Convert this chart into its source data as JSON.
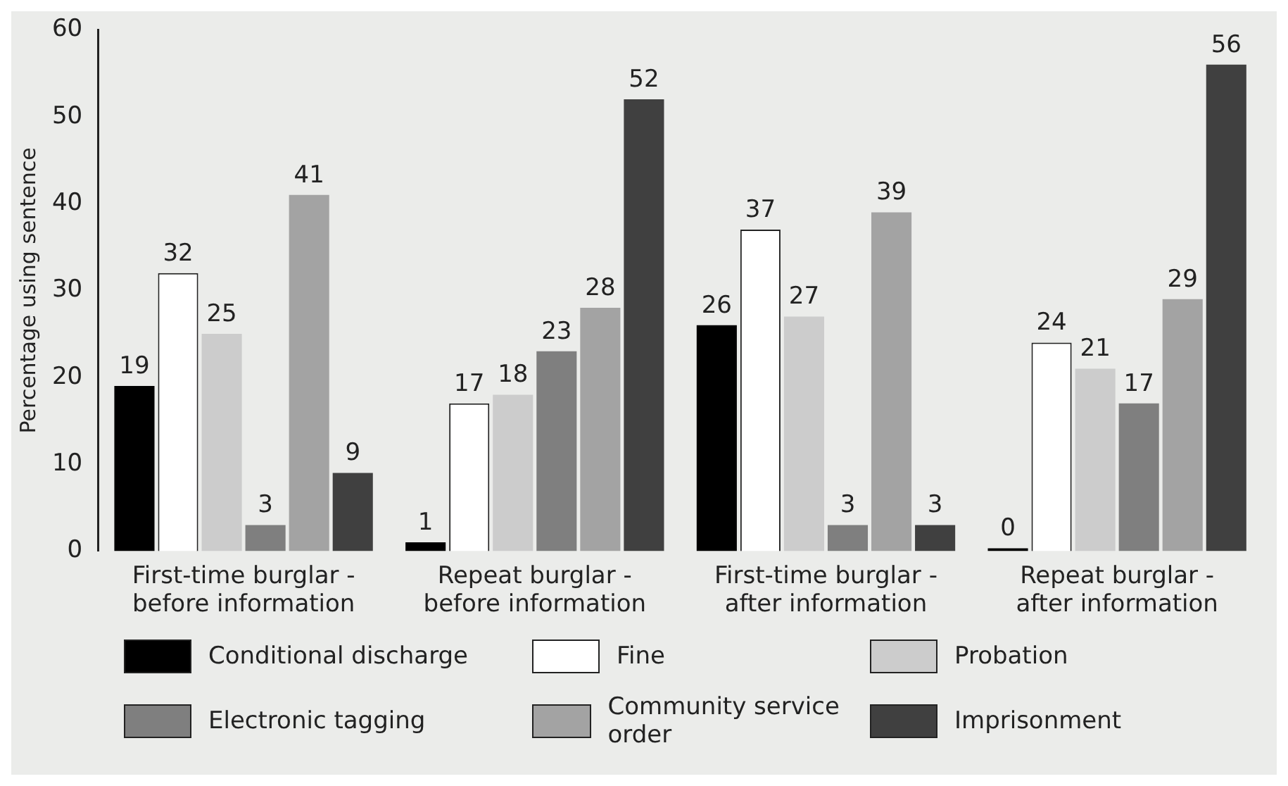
{
  "chart_data": {
    "type": "bar",
    "ylabel": "Percentage using sentence",
    "categories": [
      "First-time burglar - before information",
      "Repeat burglar - before information",
      "First-time burglar - after information",
      "Repeat burglar - after information"
    ],
    "series": [
      {
        "name": "Conditional discharge",
        "color": "#000000",
        "values": [
          19,
          1,
          26,
          0
        ]
      },
      {
        "name": "Fine",
        "color": "#ffffff",
        "values": [
          32,
          17,
          37,
          24
        ]
      },
      {
        "name": "Probation",
        "color": "#cccccc",
        "values": [
          25,
          18,
          27,
          21
        ]
      },
      {
        "name": "Electronic tagging",
        "color": "#7f7f7f",
        "values": [
          3,
          23,
          3,
          17
        ]
      },
      {
        "name": "Community service order",
        "color": "#a3a3a3",
        "values": [
          41,
          28,
          39,
          29
        ]
      },
      {
        "name": "Imprisonment",
        "color": "#404040",
        "values": [
          9,
          52,
          3,
          56
        ]
      }
    ],
    "ylim": [
      0,
      60
    ],
    "yticks": [
      0,
      10,
      20,
      30,
      40,
      50,
      60
    ],
    "grid": false,
    "legend": "bottom",
    "data_labels": true
  }
}
